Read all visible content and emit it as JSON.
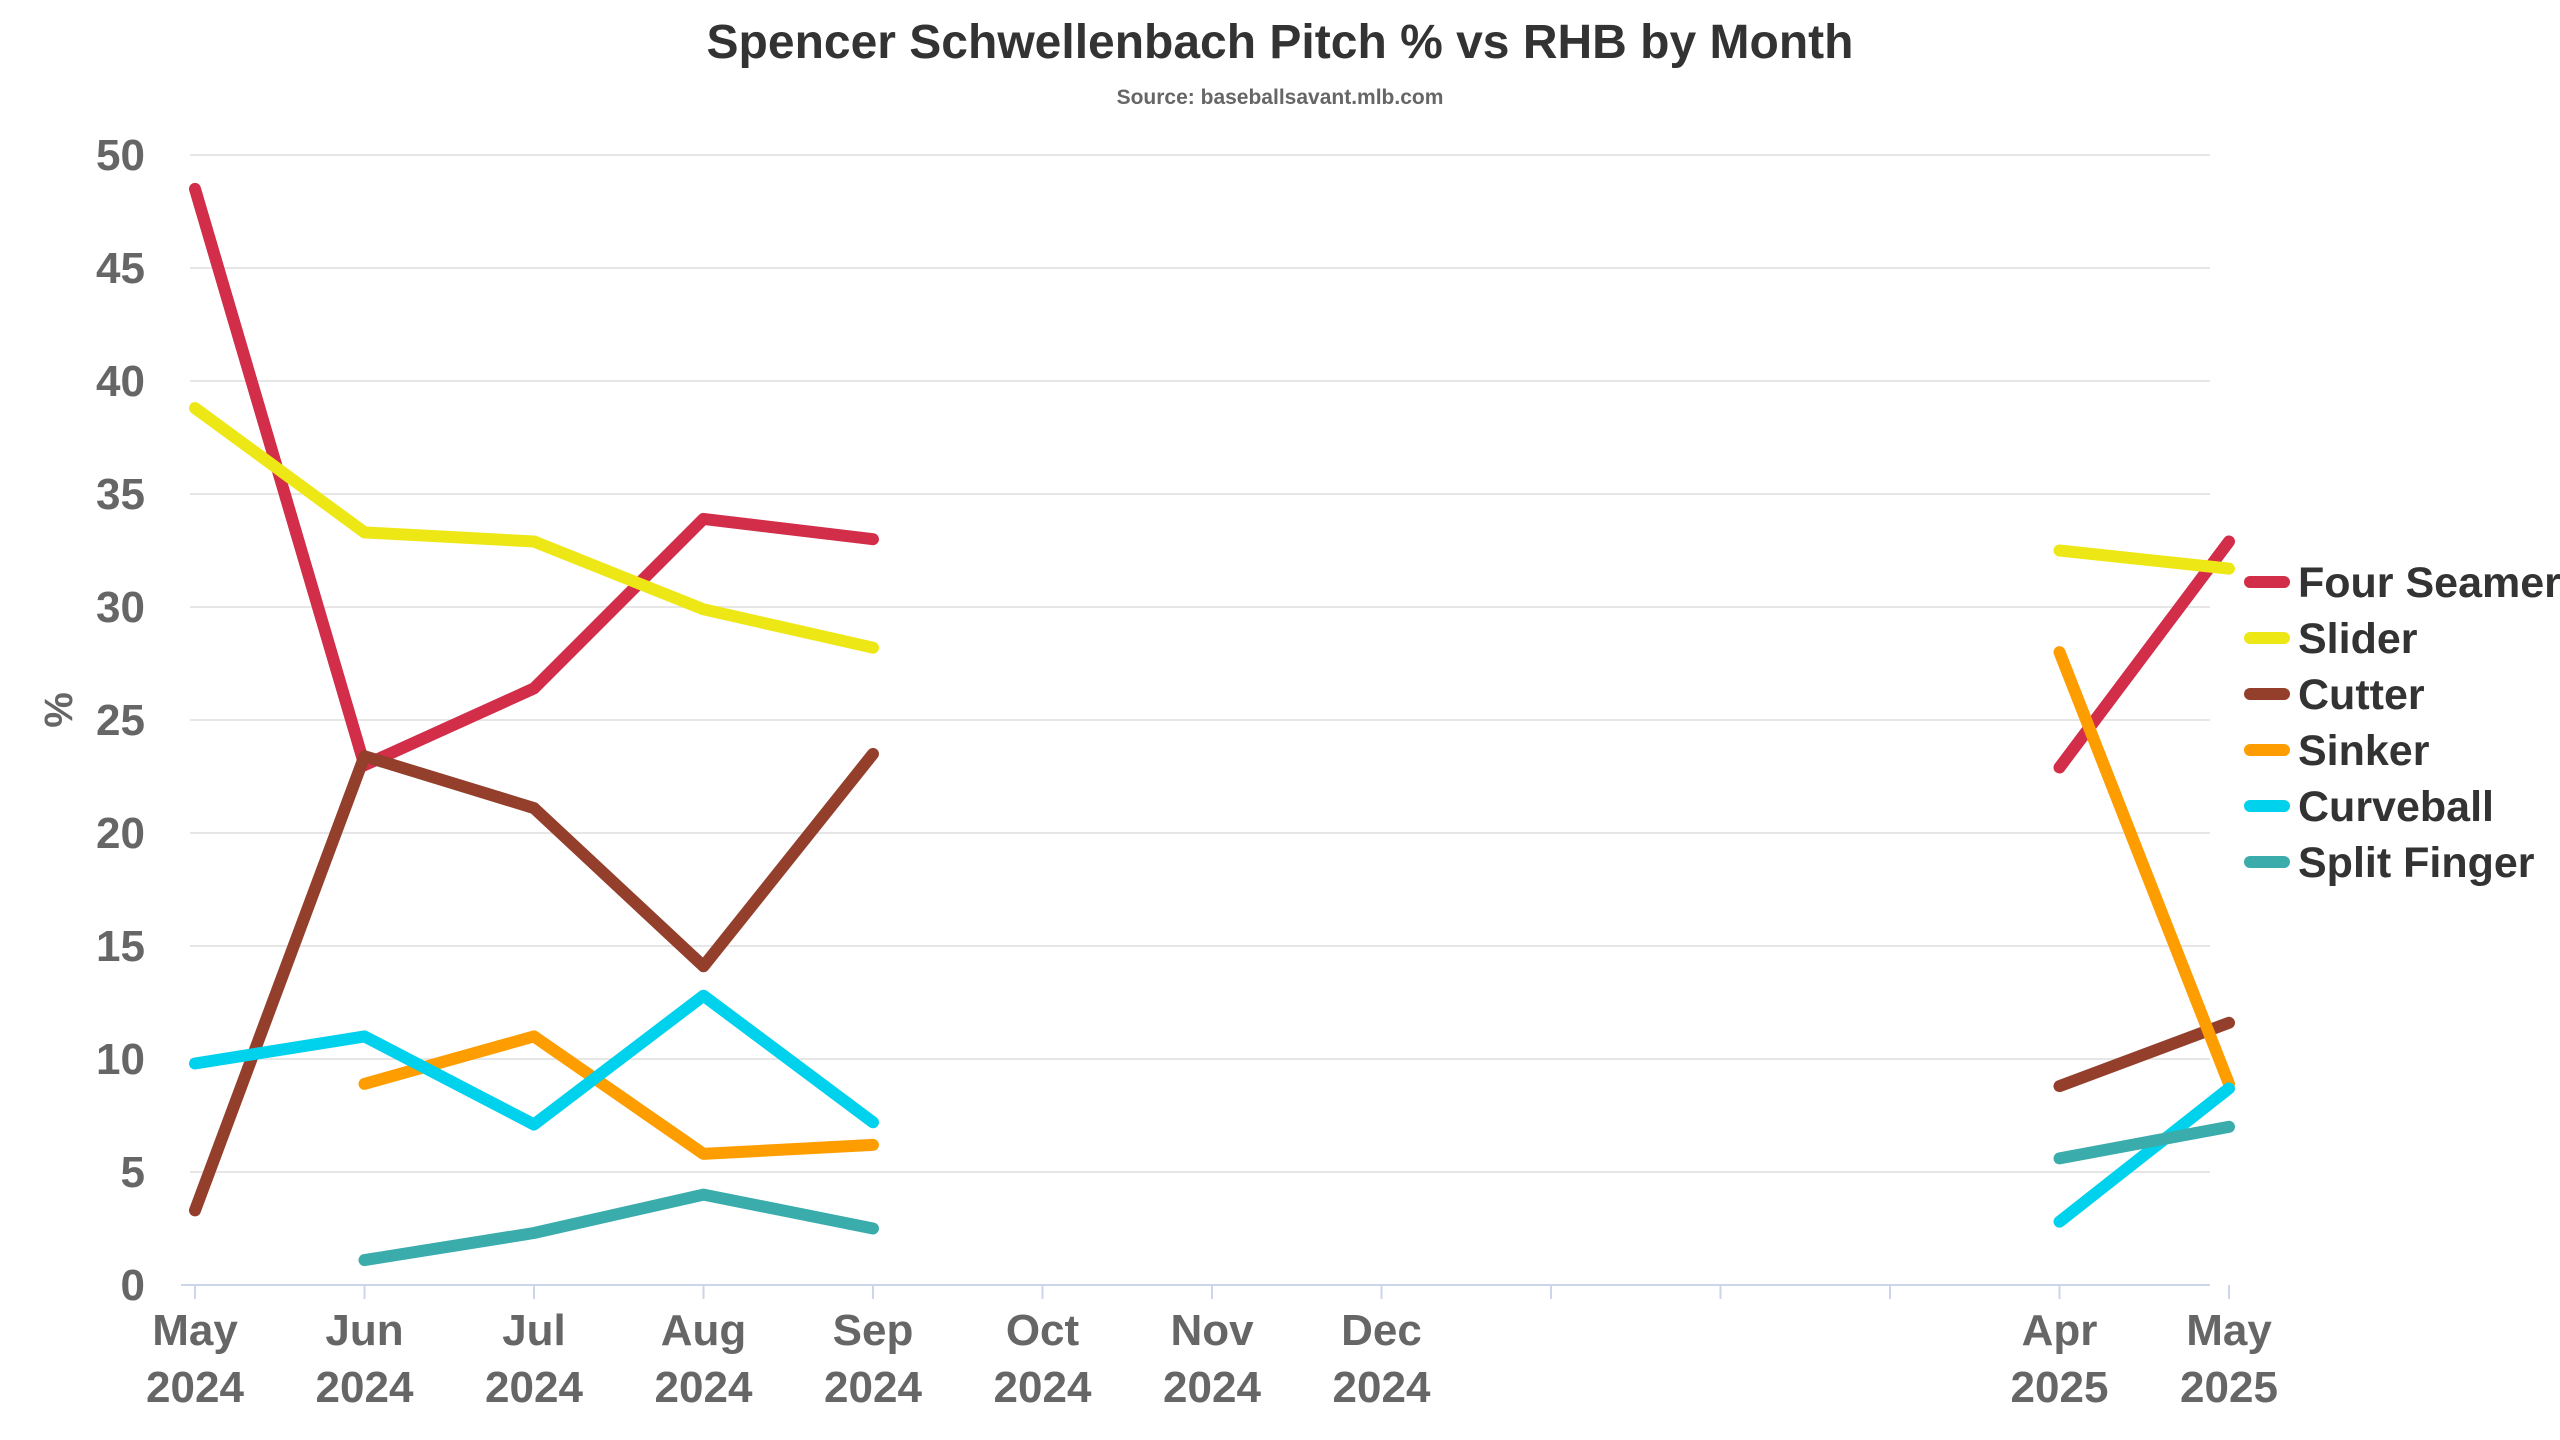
{
  "chart_data": {
    "type": "line",
    "title": "Spencer Schwellenbach Pitch % vs RHB by Month",
    "subtitle": "Source: baseballsavant.mlb.com",
    "xlabel": "",
    "ylabel": "%",
    "ylim": [
      0,
      50
    ],
    "yticks": [
      0,
      5,
      10,
      15,
      20,
      25,
      30,
      35,
      40,
      45,
      50
    ],
    "grid": true,
    "legend_position": "right",
    "x_months": [
      "2024-05",
      "2024-06",
      "2024-07",
      "2024-08",
      "2024-09",
      "2024-10",
      "2024-11",
      "2024-12",
      "2025-01",
      "2025-02",
      "2025-03",
      "2025-04",
      "2025-05"
    ],
    "x_tick_labels": [
      {
        "month": "May",
        "year": "2024"
      },
      {
        "month": "Jun",
        "year": "2024"
      },
      {
        "month": "Jul",
        "year": "2024"
      },
      {
        "month": "Aug",
        "year": "2024"
      },
      {
        "month": "Sep",
        "year": "2024"
      },
      {
        "month": "Oct",
        "year": "2024"
      },
      {
        "month": "Nov",
        "year": "2024"
      },
      {
        "month": "Dec",
        "year": "2024"
      },
      {
        "month": "",
        "year": ""
      },
      {
        "month": "",
        "year": ""
      },
      {
        "month": "",
        "year": ""
      },
      {
        "month": "Apr",
        "year": "2025"
      },
      {
        "month": "May",
        "year": "2025"
      }
    ],
    "series": [
      {
        "name": "Four Seamer",
        "color": "#d22d49",
        "values": [
          48.5,
          23.0,
          26.4,
          33.9,
          33.0,
          null,
          null,
          null,
          null,
          null,
          null,
          22.9,
          32.9
        ]
      },
      {
        "name": "Slider",
        "color": "#eee716",
        "values": [
          38.8,
          33.3,
          32.9,
          29.9,
          28.2,
          null,
          null,
          null,
          null,
          null,
          null,
          32.5,
          31.7
        ]
      },
      {
        "name": "Cutter",
        "color": "#933f2c",
        "values": [
          3.3,
          23.4,
          21.1,
          14.1,
          23.5,
          null,
          null,
          null,
          null,
          null,
          null,
          8.8,
          11.6
        ]
      },
      {
        "name": "Sinker",
        "color": "#fe9d00",
        "values": [
          null,
          8.9,
          11.0,
          5.8,
          6.2,
          null,
          null,
          null,
          null,
          null,
          null,
          28.0,
          8.9
        ]
      },
      {
        "name": "Curveball",
        "color": "#00d1ed",
        "values": [
          9.8,
          11.0,
          7.1,
          12.8,
          7.2,
          null,
          null,
          null,
          null,
          null,
          null,
          2.8,
          8.7
        ]
      },
      {
        "name": "Split Finger",
        "color": "#3bacac",
        "values": [
          null,
          1.1,
          2.3,
          4.0,
          2.5,
          null,
          null,
          null,
          null,
          null,
          null,
          5.6,
          7.0
        ]
      }
    ]
  }
}
